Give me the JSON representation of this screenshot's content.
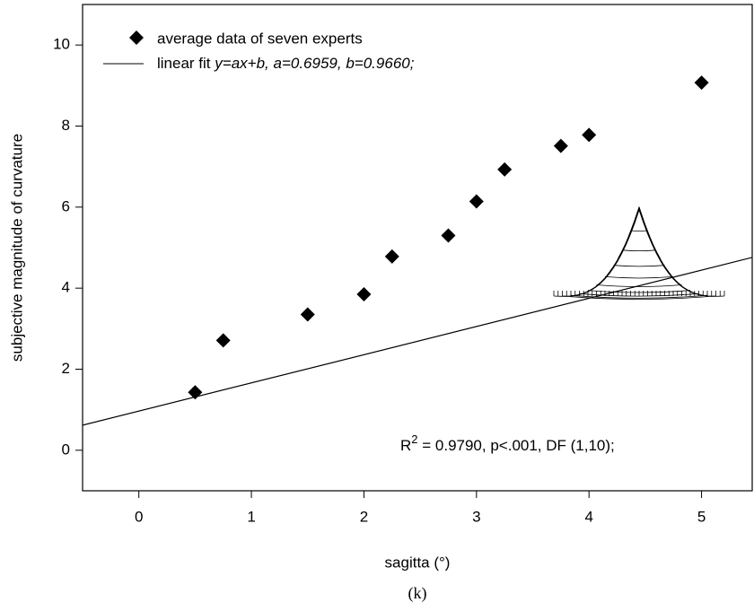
{
  "chart_data": {
    "type": "scatter",
    "x_label": "sagitta (°)",
    "y_label": "subjective magnitude of curvature",
    "caption": "(k)",
    "xlim": [
      -0.5,
      5.45
    ],
    "ylim": [
      -1,
      11
    ],
    "xticks": [
      0,
      1,
      2,
      3,
      4,
      5
    ],
    "yticks": [
      0,
      2,
      4,
      6,
      8,
      10
    ],
    "series": [
      {
        "name": "average data of seven experts",
        "color": "#000000",
        "x": [
          0.5,
          0.75,
          1.5,
          2,
          2.25,
          2.75,
          3,
          3.25,
          3.75,
          4,
          5
        ],
        "values": [
          1.43,
          2.71,
          3.35,
          3.85,
          4.78,
          5.3,
          6.14,
          6.93,
          7.51,
          7.78,
          9.07
        ]
      }
    ],
    "fit": {
      "name": "linear fit",
      "equation": "y=ax+b,",
      "a": {
        "value": 0.6959,
        "label": "a=0.6959,"
      },
      "b": {
        "value": 0.966,
        "label": "b=0.9660;"
      }
    },
    "annotation": {
      "r": "R",
      "sup": "2",
      "rest": " = 0.9790, p<.001, DF (1,10);"
    }
  }
}
